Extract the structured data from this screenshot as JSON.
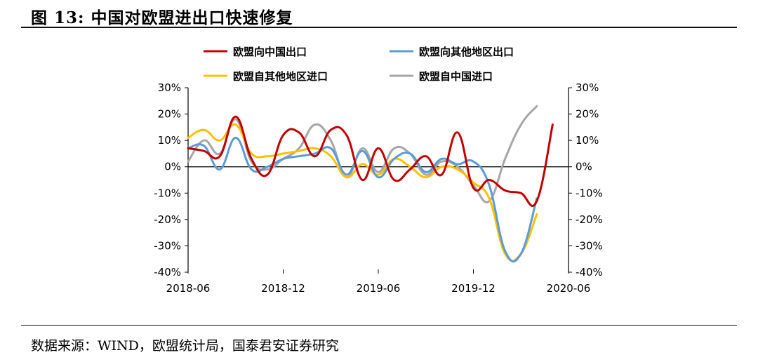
{
  "figure": {
    "title": "图 13:  中国对欧盟进出口快速修复",
    "source": "数据来源：WIND，欧盟统计局，国泰君安证券研究"
  },
  "chart_data": {
    "type": "line",
    "title": "图 13:  中国对欧盟进出口快速修复",
    "xlabel": "",
    "ylabel": "",
    "x_tick_labels": [
      "2018-06",
      "2018-12",
      "2019-06",
      "2019-12",
      "2020-06"
    ],
    "y_tick_labels": [
      "30%",
      "20%",
      "10%",
      "0%",
      "-10%",
      "-20%",
      "-30%",
      "-40%"
    ],
    "y_ticks": [
      30,
      20,
      10,
      0,
      -10,
      -20,
      -30,
      -40
    ],
    "ylim": [
      -40,
      30
    ],
    "y_unit": "%",
    "grid": false,
    "legend_position": "top",
    "x": [
      "2018-06",
      "2018-07",
      "2018-08",
      "2018-09",
      "2018-10",
      "2018-11",
      "2018-12",
      "2019-01",
      "2019-02",
      "2019-03",
      "2019-04",
      "2019-05",
      "2019-06",
      "2019-07",
      "2019-08",
      "2019-09",
      "2019-10",
      "2019-11",
      "2019-12",
      "2020-01",
      "2020-02",
      "2020-03",
      "2020-04",
      "2020-05",
      "2020-06"
    ],
    "series": [
      {
        "name": "欧盟向中国出口",
        "color": "#c00000",
        "values": [
          7,
          6,
          4,
          19,
          3,
          -3,
          12,
          13,
          4,
          14,
          12,
          -5,
          7,
          -5,
          -1,
          4,
          -3,
          13,
          -8,
          -5,
          -9,
          -10,
          -13,
          16,
          null
        ]
      },
      {
        "name": "欧盟向其他地区出口",
        "color": "#5b9bd5",
        "values": [
          7,
          8,
          -1,
          11,
          -1,
          0,
          3,
          4,
          5,
          7,
          -3,
          6,
          -4,
          3,
          5,
          -2,
          3,
          1,
          2,
          -7,
          -32,
          -33,
          -12,
          null,
          null
        ]
      },
      {
        "name": "欧盟自其他地区进口",
        "color": "#ffc000",
        "values": [
          11,
          14,
          10,
          16,
          5,
          4,
          5,
          6,
          7,
          4,
          -4,
          1,
          -3,
          3,
          0,
          -4,
          0,
          -1,
          -6,
          -12,
          -33,
          -33,
          -18,
          null,
          null
        ]
      },
      {
        "name": "欧盟自中国进口",
        "color": "#a6a6a6",
        "values": [
          2,
          10,
          5,
          18,
          2,
          -1,
          3,
          7,
          16,
          10,
          -4,
          7,
          -2,
          7,
          5,
          -3,
          2,
          0,
          -7,
          -13,
          3,
          16,
          23,
          null,
          null
        ]
      }
    ]
  }
}
